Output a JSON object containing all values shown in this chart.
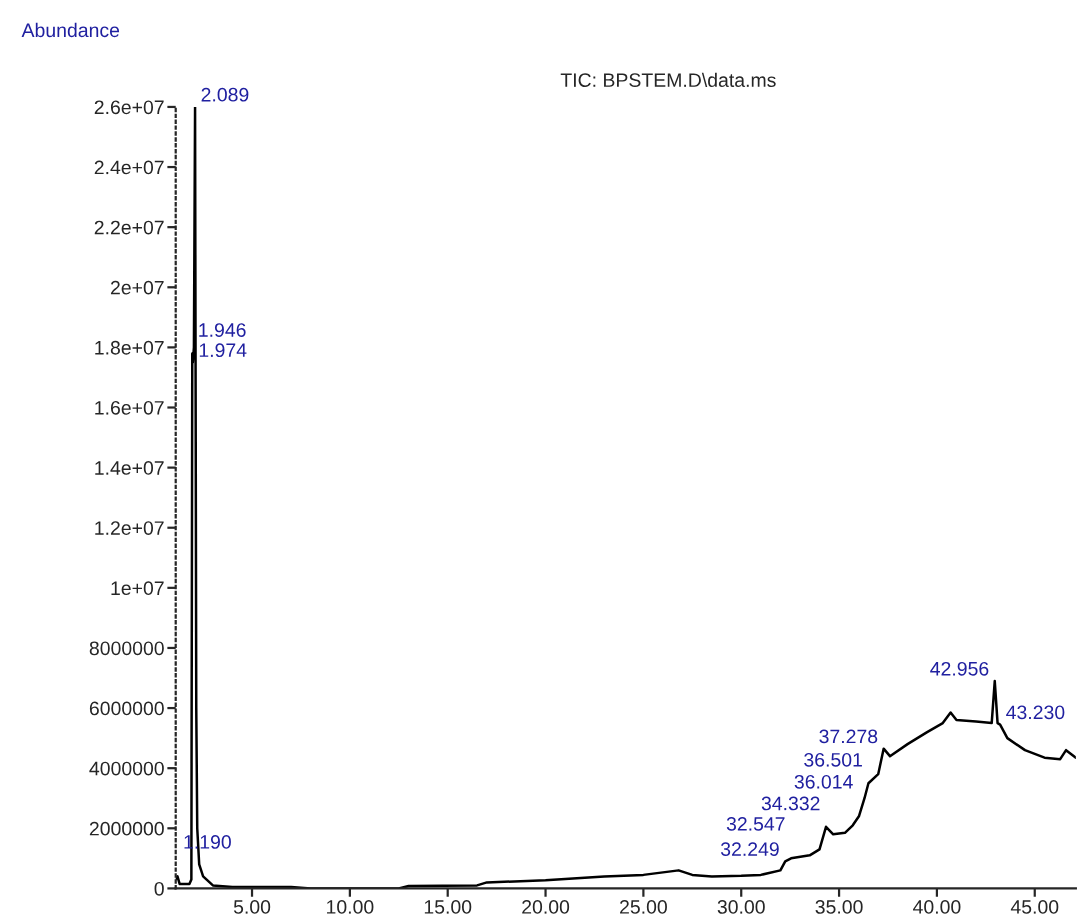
{
  "chart_data": {
    "type": "line",
    "title": "TIC: BPSTEM.D\\data.ms",
    "ylabel": "Abundance",
    "series": [
      {
        "color": "#000000",
        "x": [
          1.1,
          1.19,
          1.3,
          1.8,
          1.9,
          1.946,
          1.974,
          2.03,
          2.089,
          2.15,
          2.2,
          2.3,
          2.5,
          3.0,
          4.0,
          7.0,
          8.0,
          12.5,
          13.0,
          16.5,
          17.0,
          20.0,
          23.0,
          25.0,
          26.8,
          27.5,
          28.5,
          30.0,
          31.0,
          32.0,
          32.249,
          32.547,
          33.5,
          34.0,
          34.332,
          34.7,
          35.3,
          35.7,
          36.014,
          36.3,
          36.501,
          37.0,
          37.278,
          37.6,
          38.5,
          39.5,
          40.3,
          40.7,
          41.0,
          42.0,
          42.8,
          42.956,
          43.1,
          43.23,
          43.6,
          44.5,
          45.5,
          46.3,
          46.6,
          47.1
        ],
        "values": [
          300000,
          400000,
          150000,
          150000,
          300000,
          17800000,
          17500000,
          18000000,
          26000000,
          6000000,
          2000000,
          800000,
          400000,
          100000,
          50000,
          50000,
          0,
          0,
          80000,
          100000,
          200000,
          270000,
          400000,
          450000,
          600000,
          450000,
          400000,
          420000,
          450000,
          600000,
          900000,
          1000000,
          1100000,
          1300000,
          2050000,
          1800000,
          1850000,
          2100000,
          2400000,
          3000000,
          3500000,
          3800000,
          4650000,
          4400000,
          4800000,
          5200000,
          5500000,
          5850000,
          5600000,
          5550000,
          5500000,
          6900000,
          5500000,
          5450000,
          5000000,
          4600000,
          4350000,
          4300000,
          4600000,
          4350000
        ]
      }
    ],
    "xlim": [
      1.1,
      47.1
    ],
    "ylim": [
      0,
      26000000
    ],
    "xticks": [
      {
        "value": 5,
        "label": "5.00"
      },
      {
        "value": 10,
        "label": "10.00"
      },
      {
        "value": 15,
        "label": "15.00"
      },
      {
        "value": 20,
        "label": "20.00"
      },
      {
        "value": 25,
        "label": "25.00"
      },
      {
        "value": 30,
        "label": "30.00"
      },
      {
        "value": 35,
        "label": "35.00"
      },
      {
        "value": 40,
        "label": "40.00"
      },
      {
        "value": 45,
        "label": "45.00"
      }
    ],
    "yticks": [
      0,
      2000000,
      4000000,
      6000000,
      8000000,
      {
        "value": 10000000,
        "label": "1e+07"
      },
      {
        "value": 12000000,
        "label": "1.2e+07"
      },
      {
        "value": 14000000,
        "label": "1.4e+07"
      },
      {
        "value": 16000000,
        "label": "1.6e+07"
      },
      {
        "value": 18000000,
        "label": "1.8e+07"
      },
      {
        "value": 20000000,
        "label": "2e+07"
      },
      {
        "value": 22000000,
        "label": "2.2e+07"
      },
      {
        "value": 24000000,
        "label": "2.4e+07"
      },
      {
        "value": 26000000,
        "label": "2.6e+07"
      }
    ],
    "annotations": [
      {
        "text": "1.190",
        "x": 1.19,
        "y": 400000
      },
      {
        "text": "1.946",
        "x": 1.946,
        "y": 17800000
      },
      {
        "text": "1.974",
        "x": 1.974,
        "y": 17500000
      },
      {
        "text": "2.089",
        "x": 2.089,
        "y": 26000000
      },
      {
        "text": "32.249",
        "x": 32.249,
        "y": 900000
      },
      {
        "text": "32.547",
        "x": 32.547,
        "y": 1000000
      },
      {
        "text": "34.332",
        "x": 34.332,
        "y": 2050000
      },
      {
        "text": "36.014",
        "x": 36.014,
        "y": 2400000
      },
      {
        "text": "36.501",
        "x": 36.501,
        "y": 3500000
      },
      {
        "text": "37.278",
        "x": 37.278,
        "y": 4650000
      },
      {
        "text": "42.956",
        "x": 42.956,
        "y": 6900000
      },
      {
        "text": "43.230",
        "x": 43.23,
        "y": 5450000
      }
    ],
    "grid": false,
    "legend": false
  }
}
